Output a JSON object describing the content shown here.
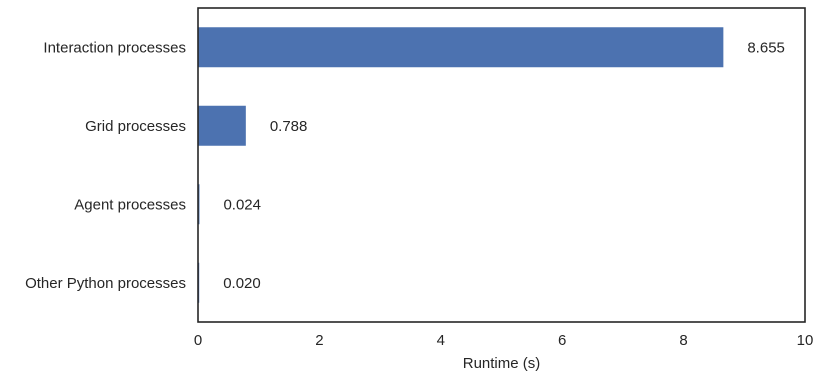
{
  "chart_data": {
    "type": "bar",
    "orientation": "horizontal",
    "categories": [
      "Interaction processes",
      "Grid processes",
      "Agent processes",
      "Other Python processes"
    ],
    "values": [
      8.655,
      0.788,
      0.024,
      0.02
    ],
    "value_labels": [
      "8.655",
      "0.788",
      "0.024",
      "0.020"
    ],
    "xlabel": "Runtime (s)",
    "ylabel": "",
    "title": "",
    "xlim": [
      0,
      10
    ],
    "xticks": [
      0,
      2,
      4,
      6,
      8,
      10
    ],
    "grid": false,
    "legend": "none",
    "bar_color": "#4c72b0",
    "axis_color": "#262626"
  }
}
